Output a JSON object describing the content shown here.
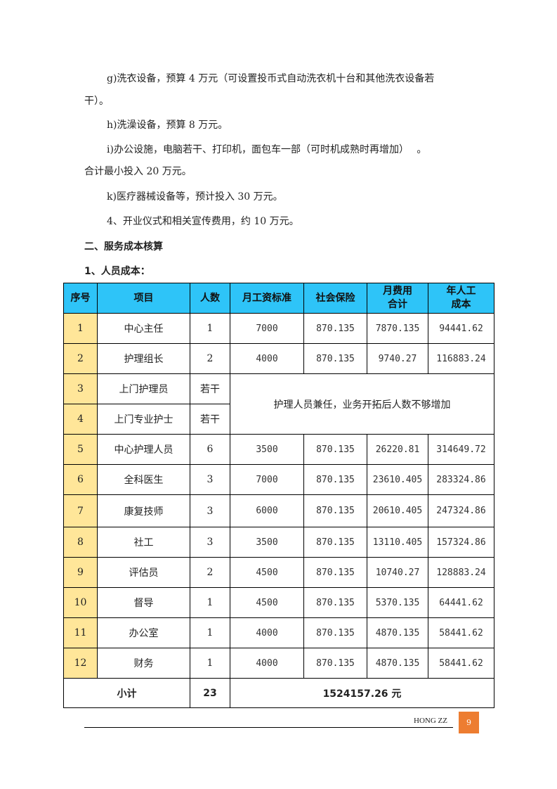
{
  "paragraphs": [
    "g)洗衣设备，预算 4 万元（可设置投币式自动洗衣机十台和其他洗衣设备若",
    "干）。",
    "h)洗澡设备，预算 8 万元。",
    "i)办公设施，电脑若干、打印机，面包车一部（可时机成熟时再增加）　 。",
    "合计最小投入 20 万元。",
    "k)医疗器械设备等，预计投入 30 万元。",
    "4、开业仪式和相关宣传费用，约 10 万元。"
  ],
  "heading": "二、服务成本核算",
  "subheading": "1、人员成本：",
  "table": {
    "headers": [
      "序号",
      "项目",
      "人数",
      "月工资标准",
      "社会保险",
      "月费用\n合计",
      "年人工\n成本"
    ],
    "rows": [
      [
        "1",
        "中心主任",
        "1",
        "7000",
        "870.135",
        "7870.135",
        "94441.62"
      ],
      [
        "2",
        "护理组长",
        "2",
        "4000",
        "870.135",
        "9740.27",
        "116883.24"
      ],
      [
        "3",
        "上门护理员",
        "若干"
      ],
      [
        "4",
        "上门专业护士",
        "若干"
      ],
      [
        "5",
        "中心护理人员",
        "6",
        "3500",
        "870.135",
        "26220.81",
        "314649.72"
      ],
      [
        "6",
        "全科医生",
        "3",
        "7000",
        "870.135",
        "23610.405",
        "283324.86"
      ],
      [
        "7",
        "康复技师",
        "3",
        "6000",
        "870.135",
        "20610.405",
        "247324.86"
      ],
      [
        "8",
        "社工",
        "3",
        "3500",
        "870.135",
        "13110.405",
        "157324.86"
      ],
      [
        "9",
        "评估员",
        "2",
        "4500",
        "870.135",
        "10740.27",
        "128883.24"
      ],
      [
        "10",
        "督导",
        "1",
        "4500",
        "870.135",
        "5370.135",
        "64441.62"
      ],
      [
        "11",
        "办公室",
        "1",
        "4000",
        "870.135",
        "4870.135",
        "58441.62"
      ],
      [
        "12",
        "财务",
        "1",
        "4000",
        "870.135",
        "4870.135",
        "58441.62"
      ]
    ],
    "merged_note": "护理人员兼任，业务开拓后人数不够增加",
    "total_label": "小计",
    "total_count": "23",
    "total_value": "1524157.26 元"
  },
  "footer": {
    "text": "HONG  ZZ",
    "page": "9"
  },
  "colors": {
    "header_bg": "#2ec4f8",
    "index_bg": "#ffe699",
    "page_badge": "#ed7d31"
  }
}
